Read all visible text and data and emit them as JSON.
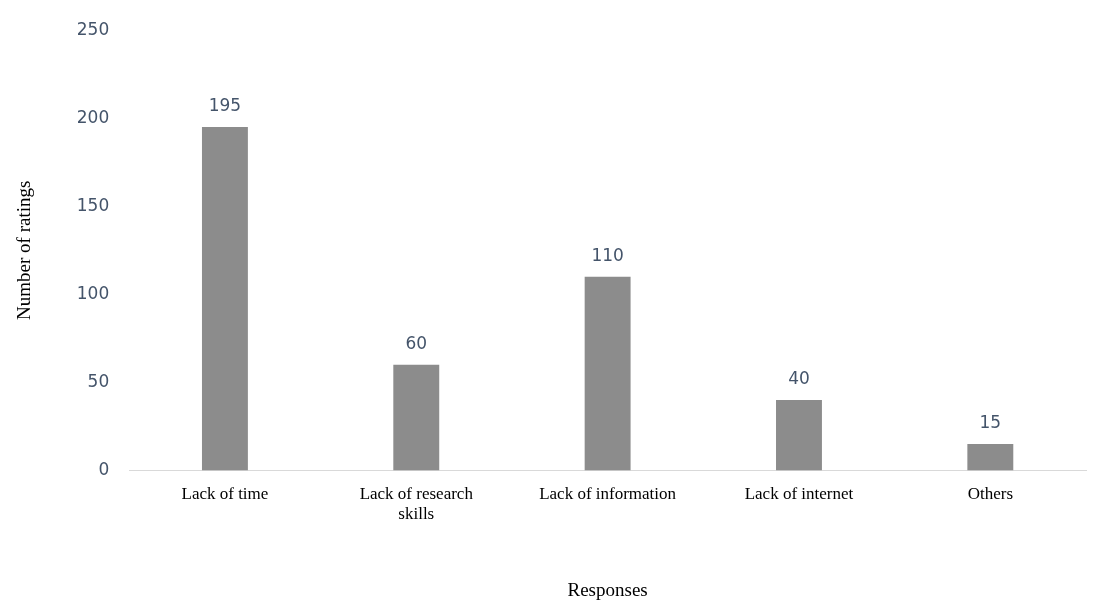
{
  "chart_data": {
    "type": "bar",
    "xlabel": "Responses",
    "ylabel": "Number of ratings",
    "categories": [
      "Lack of time",
      "Lack of research skills",
      "Lack of information",
      "Lack of internet",
      "Others"
    ],
    "values": [
      195,
      60,
      110,
      40,
      15
    ],
    "color": "#8c8c8c",
    "ylim": [
      0,
      250
    ],
    "yticks": [
      0,
      50,
      100,
      150,
      200,
      250
    ],
    "grid": false,
    "data_labels": true
  }
}
